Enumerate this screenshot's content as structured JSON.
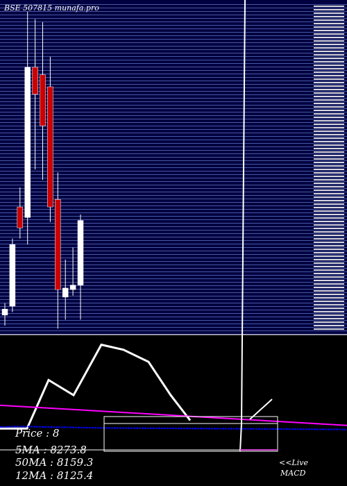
{
  "chart_data": [
    {
      "type": "candlestick",
      "title": "BSE 507815 munafa.pro",
      "y_tick_labels": "unreadable (many overlapping price labels on right edge)",
      "grid": true,
      "candles": [
        {
          "open": 8230,
          "close": 8270,
          "high": 8310,
          "low": 8160,
          "color": "white"
        },
        {
          "open": 8290,
          "close": 8700,
          "high": 8740,
          "low": 8250,
          "color": "white"
        },
        {
          "open": 8950,
          "close": 8810,
          "high": 9080,
          "low": 8740,
          "color": "red"
        },
        {
          "open": 8880,
          "close": 9880,
          "high": 10250,
          "low": 8700,
          "color": "white"
        },
        {
          "open": 9880,
          "close": 9700,
          "high": 10200,
          "low": 9200,
          "color": "red"
        },
        {
          "open": 9830,
          "close": 9490,
          "high": 10180,
          "low": 9130,
          "color": "red"
        },
        {
          "open": 9750,
          "close": 8950,
          "high": 9950,
          "low": 8850,
          "color": "red"
        },
        {
          "open": 9000,
          "close": 8400,
          "high": 9180,
          "low": 8140,
          "color": "red"
        },
        {
          "open": 8350,
          "close": 8410,
          "high": 8600,
          "low": 8200,
          "color": "white"
        },
        {
          "open": 8400,
          "close": 8430,
          "high": 8680,
          "low": 8360,
          "color": "white"
        },
        {
          "open": 8430,
          "close": 8860,
          "high": 8900,
          "low": 8200,
          "color": "white"
        }
      ],
      "ylim": [
        8100,
        10300
      ]
    },
    {
      "type": "line",
      "title": "MACD",
      "series": [
        {
          "color": "#ffffff",
          "x": [
            0,
            39,
            70,
            106,
            146,
            178,
            214,
            246,
            274
          ],
          "values": [
            -6,
            -6,
            90,
            60,
            160,
            150,
            126,
            60,
            10
          ]
        },
        {
          "color": "#ff00ff",
          "x": [
            0,
            500
          ],
          "values": [
            40,
            0
          ]
        },
        {
          "color": "#0000ff",
          "x": [
            0,
            30,
            150,
            500
          ],
          "values": [
            -3,
            -2,
            -5,
            -8
          ]
        }
      ],
      "ylim": [
        -120,
        180
      ]
    }
  ],
  "info": {
    "price": "Price   : 8",
    "ma5": "5MA : 8273.8",
    "ma50": "50MA : 8159.3",
    "ma12": "12MA : 8125.4"
  },
  "live": {
    "line1": "<<Live",
    "line2": "MACD"
  },
  "colors": {
    "background": "#000000",
    "grid": "#4a5aa0",
    "panel_fill": "#000040",
    "bull": "#ffffff",
    "bear": "#cc0000",
    "signal": "#cc44cc"
  }
}
